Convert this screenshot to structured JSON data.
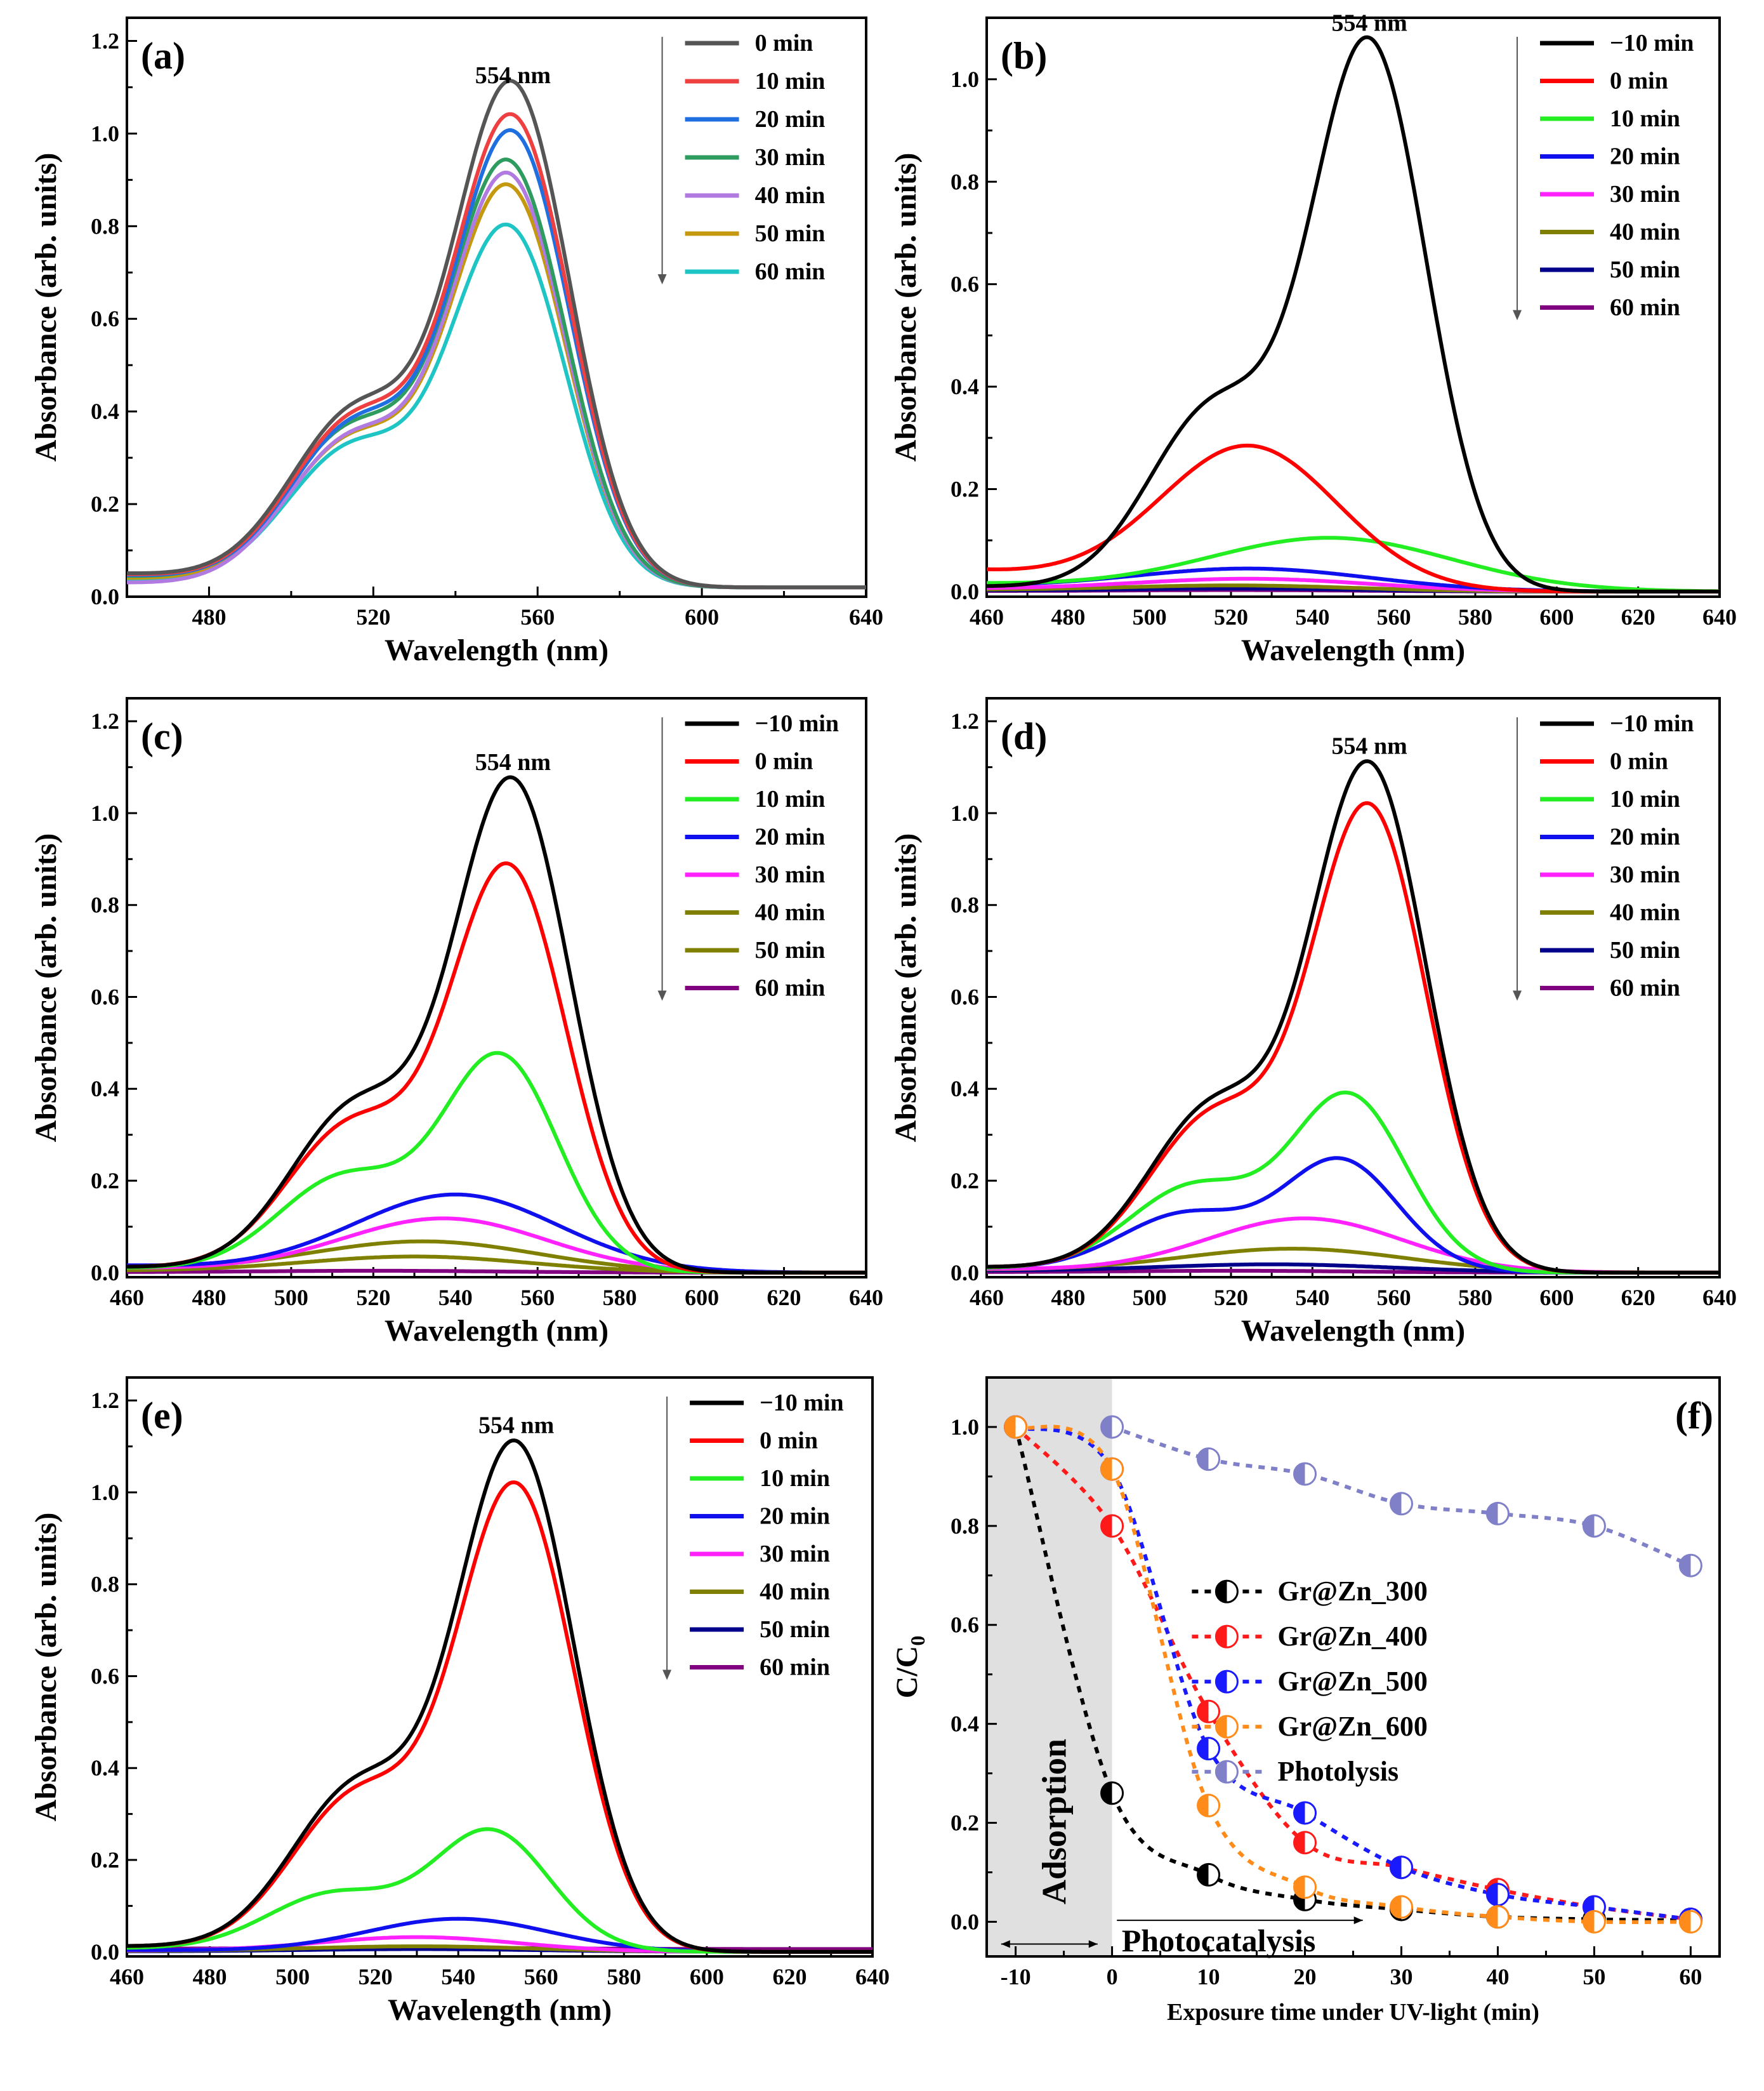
{
  "chart_data": [
    {
      "id": "a",
      "type": "line",
      "panel_label": "(a)",
      "annotation": "554 nm",
      "xlabel": "Wavelength (nm)",
      "ylabel": "Absorbance (arb. units)",
      "xlim": [
        460,
        640
      ],
      "ylim": [
        0,
        1.25
      ],
      "xticks": [
        480,
        520,
        560,
        600,
        640
      ],
      "yticks": [
        0.0,
        0.2,
        0.4,
        0.6,
        0.8,
        1.0,
        1.2
      ],
      "ytick_decimals": 1,
      "legend_arrow": true,
      "series": [
        {
          "name": "0 min",
          "color": "#555555",
          "peak": 1.065,
          "shoulder": 0.36,
          "peak_x": 554,
          "tail": 0.02,
          "base": 0.05
        },
        {
          "name": "10 min",
          "color": "#ee4040",
          "peak": 0.995,
          "shoulder": 0.345,
          "peak_x": 554,
          "tail": 0.02,
          "base": 0.048
        },
        {
          "name": "20 min",
          "color": "#1f6fe0",
          "peak": 0.962,
          "shoulder": 0.335,
          "peak_x": 554,
          "tail": 0.02,
          "base": 0.046
        },
        {
          "name": "30 min",
          "color": "#2e9b5f",
          "peak": 0.9,
          "shoulder": 0.325,
          "peak_x": 553,
          "tail": 0.02,
          "base": 0.044
        },
        {
          "name": "40 min",
          "color": "#b07ae0",
          "peak": 0.88,
          "shoulder": 0.315,
          "peak_x": 553,
          "tail": 0.02,
          "base": 0.03
        },
        {
          "name": "50 min",
          "color": "#c4980f",
          "peak": 0.85,
          "shoulder": 0.305,
          "peak_x": 553,
          "tail": 0.02,
          "base": 0.04
        },
        {
          "name": "60 min",
          "color": "#1fc4c4",
          "peak": 0.765,
          "shoulder": 0.29,
          "peak_x": 553,
          "tail": 0.02,
          "base": 0.038
        }
      ]
    },
    {
      "id": "b",
      "type": "line",
      "panel_label": "(b)",
      "annotation": "554 nm",
      "xlabel": "Wavelength (nm)",
      "ylabel": "Absorbance (arb. units)",
      "xlim": [
        460,
        640
      ],
      "ylim": [
        -0.01,
        1.12
      ],
      "xticks": [
        460,
        480,
        500,
        520,
        540,
        560,
        580,
        600,
        620,
        640
      ],
      "yticks": [
        0.0,
        0.2,
        0.4,
        0.6,
        0.8,
        1.0
      ],
      "ytick_decimals": 1,
      "legend_arrow": true,
      "series": [
        {
          "name": "−10 min",
          "color": "#000000",
          "peak": 1.055,
          "shoulder": 0.35,
          "peak_x": 554,
          "tail": 0.0,
          "base": 0.01
        },
        {
          "name": "0 min",
          "color": "#ff0000",
          "peak": 0.285,
          "peak_x": 524,
          "width": 22,
          "tail": 0.0,
          "base": 0.04
        },
        {
          "name": "10 min",
          "color": "#22ee22",
          "peak": 0.105,
          "peak_x": 544,
          "width": 30,
          "tail": 0.0,
          "base": 0.015
        },
        {
          "name": "20 min",
          "color": "#1010ee",
          "peak": 0.045,
          "peak_x": 524,
          "width": 30,
          "tail": 0.0,
          "base": 0.01
        },
        {
          "name": "30 min",
          "color": "#ff22ff",
          "peak": 0.025,
          "peak_x": 524,
          "width": 30,
          "tail": 0.0,
          "base": 0.005
        },
        {
          "name": "40 min",
          "color": "#808000",
          "peak": 0.012,
          "peak_x": 520,
          "width": 30,
          "tail": 0.0,
          "base": 0.003
        },
        {
          "name": "50 min",
          "color": "#00008b",
          "peak": 0.006,
          "peak_x": 520,
          "width": 30,
          "tail": 0.0,
          "base": 0.002
        },
        {
          "name": "60 min",
          "color": "#800080",
          "peak": 0.003,
          "peak_x": 520,
          "width": 30,
          "tail": 0.0,
          "base": 0.001
        }
      ]
    },
    {
      "id": "c",
      "type": "line",
      "panel_label": "(c)",
      "annotation": "554 nm",
      "xlabel": "Wavelength (nm)",
      "ylabel": "Absorbance (arb. units)",
      "xlim": [
        460,
        640
      ],
      "ylim": [
        -0.01,
        1.25
      ],
      "xticks": [
        460,
        480,
        500,
        520,
        540,
        560,
        580,
        600,
        620,
        640
      ],
      "yticks": [
        0.0,
        0.2,
        0.4,
        0.6,
        0.8,
        1.0,
        1.2
      ],
      "ytick_decimals": 1,
      "legend_arrow": true,
      "series": [
        {
          "name": "−10 min",
          "color": "#000000",
          "peak": 1.05,
          "shoulder": 0.35,
          "peak_x": 554,
          "tail": 0.0,
          "base": 0.012
        },
        {
          "name": "0 min",
          "color": "#ff0000",
          "peak": 0.865,
          "shoulder": 0.31,
          "peak_x": 553,
          "tail": 0.0,
          "base": 0.012
        },
        {
          "name": "10 min",
          "color": "#22ee22",
          "peak": 0.46,
          "shoulder": 0.2,
          "peak_x": 551,
          "tail": 0.0,
          "base": 0.01
        },
        {
          "name": "20 min",
          "color": "#1010ee",
          "peak": 0.17,
          "peak_x": 540,
          "width": 25,
          "tail": 0.0,
          "base": 0.015
        },
        {
          "name": "30 min",
          "color": "#ff22ff",
          "peak": 0.118,
          "peak_x": 537,
          "width": 25,
          "tail": 0.0,
          "base": 0.01
        },
        {
          "name": "40 min",
          "color": "#808000",
          "peak": 0.068,
          "peak_x": 532,
          "width": 28,
          "tail": 0.0,
          "base": 0.006
        },
        {
          "name": "50 min",
          "color": "#808000",
          "peak": 0.035,
          "peak_x": 530,
          "width": 28,
          "tail": 0.0,
          "base": 0.004
        },
        {
          "name": "60 min",
          "color": "#800080",
          "peak": 0.004,
          "peak_x": 520,
          "width": 30,
          "tail": 0.0,
          "base": 0.001
        }
      ]
    },
    {
      "id": "d",
      "type": "line",
      "panel_label": "(d)",
      "annotation": "554 nm",
      "xlabel": "Wavelength (nm)",
      "ylabel": "Absorbance (arb. units)",
      "xlim": [
        460,
        640
      ],
      "ylim": [
        -0.01,
        1.25
      ],
      "xticks": [
        460,
        480,
        500,
        520,
        540,
        560,
        580,
        600,
        620,
        640
      ],
      "yticks": [
        0.0,
        0.2,
        0.4,
        0.6,
        0.8,
        1.0,
        1.2
      ],
      "ytick_decimals": 1,
      "legend_arrow": true,
      "series": [
        {
          "name": "−10 min",
          "color": "#000000",
          "peak": 1.085,
          "shoulder": 0.35,
          "peak_x": 554,
          "tail": 0.0,
          "base": 0.012
        },
        {
          "name": "0 min",
          "color": "#ff0000",
          "peak": 0.995,
          "shoulder": 0.33,
          "peak_x": 554,
          "tail": 0.0,
          "base": 0.012
        },
        {
          "name": "10 min",
          "color": "#22ee22",
          "peak": 0.375,
          "shoulder": 0.18,
          "peak_x": 549,
          "tail": 0.0,
          "base": 0.01
        },
        {
          "name": "20 min",
          "color": "#1010ee",
          "peak": 0.236,
          "shoulder": 0.12,
          "peak_x": 547,
          "tail": 0.0,
          "base": 0.01
        },
        {
          "name": "30 min",
          "color": "#ff22ff",
          "peak": 0.118,
          "peak_x": 538,
          "width": 24,
          "tail": 0.0,
          "base": 0.008
        },
        {
          "name": "40 min",
          "color": "#808000",
          "peak": 0.052,
          "peak_x": 535,
          "width": 28,
          "tail": 0.0,
          "base": 0.006
        },
        {
          "name": "50 min",
          "color": "#00008b",
          "peak": 0.018,
          "peak_x": 530,
          "width": 30,
          "tail": 0.0,
          "base": 0.004
        },
        {
          "name": "60 min",
          "color": "#800080",
          "peak": 0.004,
          "peak_x": 520,
          "width": 30,
          "tail": 0.0,
          "base": 0.001
        }
      ]
    },
    {
      "id": "e",
      "type": "line",
      "panel_label": "(e)",
      "annotation": "554 nm",
      "xlabel": "Wavelength (nm)",
      "ylabel": "Absorbance (arb. units)",
      "xlim": [
        460,
        640
      ],
      "ylim": [
        -0.01,
        1.25
      ],
      "xticks": [
        460,
        480,
        500,
        520,
        540,
        560,
        580,
        600,
        620,
        640
      ],
      "yticks": [
        0.0,
        0.2,
        0.4,
        0.6,
        0.8,
        1.0,
        1.2
      ],
      "ytick_decimals": 1,
      "legend_arrow": true,
      "series": [
        {
          "name": "−10 min",
          "color": "#000000",
          "peak": 1.085,
          "shoulder": 0.35,
          "peak_x": 554,
          "tail": 0.0,
          "base": 0.012
        },
        {
          "name": "0 min",
          "color": "#ff0000",
          "peak": 0.995,
          "shoulder": 0.33,
          "peak_x": 554,
          "tail": 0.0,
          "base": 0.012
        },
        {
          "name": "10 min",
          "color": "#22ee22",
          "peak": 0.255,
          "shoulder": 0.12,
          "peak_x": 548,
          "tail": 0.0,
          "base": 0.008
        },
        {
          "name": "20 min",
          "color": "#1010ee",
          "peak": 0.072,
          "peak_x": 540,
          "width": 22,
          "tail": 0.0,
          "base": 0.004
        },
        {
          "name": "30 min",
          "color": "#ff22ff",
          "peak": 0.032,
          "peak_x": 530,
          "width": 24,
          "tail": 0.0,
          "base": 0.003
        },
        {
          "name": "40 min",
          "color": "#808000",
          "peak": 0.012,
          "peak_x": 530,
          "width": 28,
          "tail": 0.0,
          "base": 0.002
        },
        {
          "name": "50 min",
          "color": "#00008b",
          "peak": 0.006,
          "peak_x": 530,
          "width": 30,
          "tail": 0.0,
          "base": 0.001
        },
        {
          "name": "60 min",
          "color": "#800080",
          "peak": 0.003,
          "peak_x": 530,
          "width": 30,
          "tail": 0.006,
          "base": 0.001
        }
      ]
    },
    {
      "id": "f",
      "type": "scatter",
      "panel_label": "(f)",
      "xlabel": "Exposure time under UV-light (min)",
      "ylabel": "C/C0",
      "ylabel_main": "C/C",
      "ylabel_sub": "0",
      "xlim": [
        -13,
        63
      ],
      "ylim": [
        -0.07,
        1.1
      ],
      "xticks": [
        -10,
        0,
        10,
        20,
        30,
        40,
        50,
        60
      ],
      "yticks": [
        0.0,
        0.2,
        0.4,
        0.6,
        0.8,
        1.0
      ],
      "ytick_decimals": 1,
      "adsorption_region": [
        -13,
        0
      ],
      "adsorption_label": "Adsorption",
      "photocatalysis_label": "Photocatalysis",
      "series": [
        {
          "name": "Gr@Zn_300",
          "color": "#000000",
          "x": [
            -10,
            0,
            10,
            20,
            30,
            40,
            50,
            60
          ],
          "values": [
            1.0,
            0.26,
            0.095,
            0.045,
            0.025,
            0.01,
            0.005,
            0.003
          ]
        },
        {
          "name": "Gr@Zn_400",
          "color": "#ff1a1a",
          "x": [
            -10,
            0,
            10,
            20,
            30,
            40,
            50,
            60
          ],
          "values": [
            1.0,
            0.8,
            0.425,
            0.16,
            0.11,
            0.065,
            0.03,
            0.005
          ]
        },
        {
          "name": "Gr@Zn_500",
          "color": "#1a1aff",
          "x": [
            -10,
            0,
            10,
            20,
            30,
            40,
            50,
            60
          ],
          "values": [
            1.0,
            0.915,
            0.35,
            0.22,
            0.11,
            0.055,
            0.03,
            0.005
          ]
        },
        {
          "name": "Gr@Zn_600",
          "color": "#ff8c1a",
          "x": [
            -10,
            0,
            10,
            20,
            30,
            40,
            50,
            60
          ],
          "values": [
            1.0,
            0.915,
            0.235,
            0.07,
            0.03,
            0.01,
            0.0,
            0.0
          ]
        },
        {
          "name": "Photolysis",
          "color": "#8080c8",
          "x": [
            0,
            10,
            20,
            30,
            40,
            50,
            60
          ],
          "values": [
            1.0,
            0.935,
            0.905,
            0.845,
            0.825,
            0.8,
            0.72
          ]
        }
      ]
    }
  ]
}
